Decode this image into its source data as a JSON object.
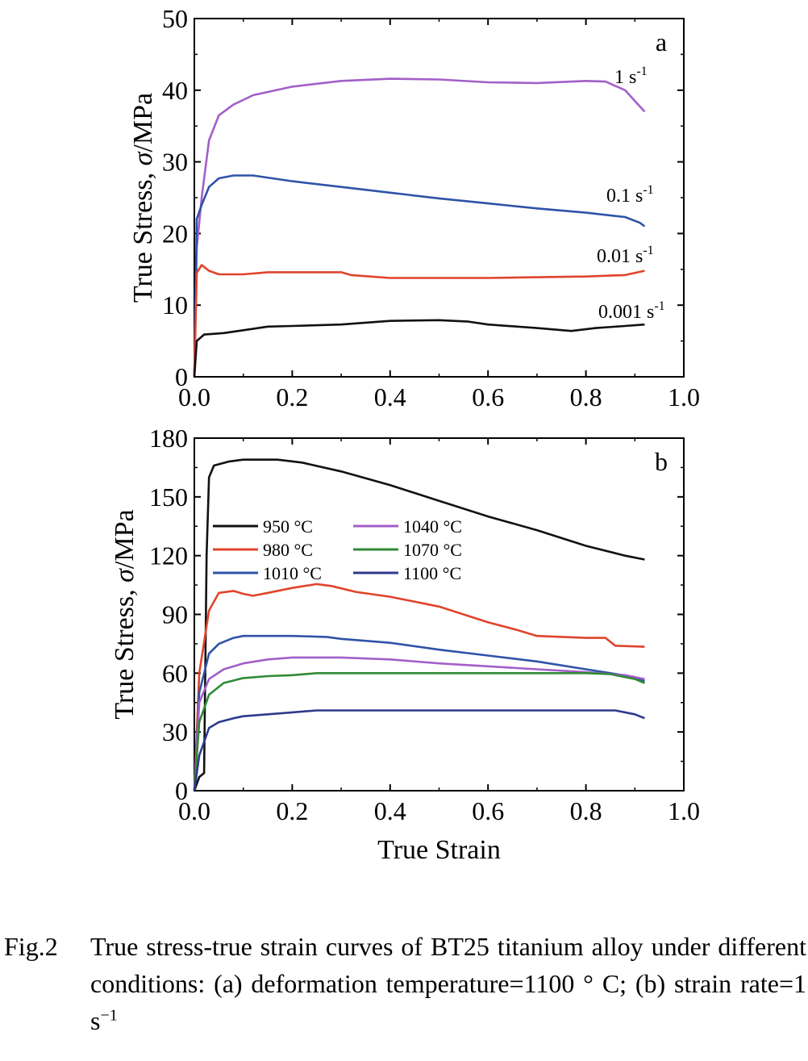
{
  "chart_data": [
    {
      "type": "line",
      "panel_label": "a",
      "ylabel_prefix": "True Stress, ",
      "ylabel_symbol": "σ",
      "ylabel_suffix": "/MPa",
      "xlim": [
        0.0,
        1.0
      ],
      "ylim": [
        0,
        50
      ],
      "xticks": [
        "0.0",
        "0.2",
        "0.4",
        "0.6",
        "0.8",
        "1.0"
      ],
      "yticks": [
        "0",
        "10",
        "20",
        "30",
        "40",
        "50"
      ],
      "series": [
        {
          "name": "1 s-1",
          "label_text": "1 s",
          "label_sup": "-1",
          "color": "#a35fc8",
          "points": [
            [
              0,
              0
            ],
            [
              0.005,
              18
            ],
            [
              0.015,
              25
            ],
            [
              0.03,
              33
            ],
            [
              0.05,
              36.5
            ],
            [
              0.08,
              38
            ],
            [
              0.12,
              39.3
            ],
            [
              0.2,
              40.5
            ],
            [
              0.3,
              41.3
            ],
            [
              0.4,
              41.6
            ],
            [
              0.5,
              41.5
            ],
            [
              0.6,
              41.1
            ],
            [
              0.7,
              41.0
            ],
            [
              0.8,
              41.3
            ],
            [
              0.84,
              41.2
            ],
            [
              0.88,
              40
            ],
            [
              0.9,
              38.5
            ],
            [
              0.92,
              37
            ]
          ]
        },
        {
          "name": "0.1 s-1",
          "label_text": "0.1 s",
          "label_sup": "-1",
          "color": "#2f53a8",
          "points": [
            [
              0,
              0
            ],
            [
              0.005,
              22
            ],
            [
              0.015,
              24
            ],
            [
              0.03,
              26.5
            ],
            [
              0.05,
              27.7
            ],
            [
              0.08,
              28.1
            ],
            [
              0.12,
              28.1
            ],
            [
              0.2,
              27.3
            ],
            [
              0.3,
              26.5
            ],
            [
              0.4,
              25.7
            ],
            [
              0.5,
              24.9
            ],
            [
              0.6,
              24.2
            ],
            [
              0.7,
              23.5
            ],
            [
              0.8,
              22.9
            ],
            [
              0.88,
              22.3
            ],
            [
              0.91,
              21.5
            ],
            [
              0.92,
              21
            ]
          ]
        },
        {
          "name": "0.01 s-1",
          "label_text": "0.01 s",
          "label_sup": "-1",
          "color": "#e0442b",
          "points": [
            [
              0,
              0
            ],
            [
              0.005,
              14.5
            ],
            [
              0.015,
              15.6
            ],
            [
              0.03,
              14.8
            ],
            [
              0.05,
              14.3
            ],
            [
              0.1,
              14.3
            ],
            [
              0.15,
              14.6
            ],
            [
              0.3,
              14.6
            ],
            [
              0.32,
              14.2
            ],
            [
              0.4,
              13.8
            ],
            [
              0.5,
              13.8
            ],
            [
              0.6,
              13.8
            ],
            [
              0.7,
              13.9
            ],
            [
              0.8,
              14.0
            ],
            [
              0.88,
              14.2
            ],
            [
              0.92,
              14.8
            ]
          ]
        },
        {
          "name": "0.001 s-1",
          "label_text": "0.001 s",
          "label_sup": "-1",
          "color": "#111111",
          "points": [
            [
              0,
              0
            ],
            [
              0.005,
              5
            ],
            [
              0.02,
              5.9
            ],
            [
              0.06,
              6.1
            ],
            [
              0.1,
              6.5
            ],
            [
              0.15,
              7.0
            ],
            [
              0.2,
              7.1
            ],
            [
              0.3,
              7.3
            ],
            [
              0.4,
              7.8
            ],
            [
              0.5,
              7.9
            ],
            [
              0.56,
              7.7
            ],
            [
              0.6,
              7.3
            ],
            [
              0.7,
              6.8
            ],
            [
              0.77,
              6.4
            ],
            [
              0.82,
              6.8
            ],
            [
              0.88,
              7.1
            ],
            [
              0.92,
              7.3
            ]
          ]
        }
      ]
    },
    {
      "type": "line",
      "panel_label": "b",
      "ylabel_prefix": "True Stress, ",
      "ylabel_symbol": "σ",
      "ylabel_suffix": "/MPa",
      "xlabel": "True Strain",
      "xlim": [
        0.0,
        1.0
      ],
      "ylim": [
        0,
        180
      ],
      "xticks": [
        "0.0",
        "0.2",
        "0.4",
        "0.6",
        "0.8",
        "1.0"
      ],
      "yticks": [
        "0",
        "30",
        "60",
        "90",
        "120",
        "150",
        "180"
      ],
      "legend_position": "upper-left",
      "series": [
        {
          "name": "950 °C",
          "color": "#111111",
          "points": [
            [
              0,
              0
            ],
            [
              0.01,
              7
            ],
            [
              0.02,
              9
            ],
            [
              0.025,
              120
            ],
            [
              0.03,
              160
            ],
            [
              0.04,
              166
            ],
            [
              0.07,
              168
            ],
            [
              0.1,
              169
            ],
            [
              0.17,
              169
            ],
            [
              0.22,
              167.5
            ],
            [
              0.3,
              163
            ],
            [
              0.4,
              156
            ],
            [
              0.5,
              148
            ],
            [
              0.6,
              140
            ],
            [
              0.7,
              133
            ],
            [
              0.8,
              125
            ],
            [
              0.88,
              120
            ],
            [
              0.92,
              118
            ]
          ]
        },
        {
          "name": "980 °C",
          "color": "#e0442b",
          "points": [
            [
              0,
              0
            ],
            [
              0.01,
              60
            ],
            [
              0.03,
              92
            ],
            [
              0.05,
              101
            ],
            [
              0.08,
              102
            ],
            [
              0.1,
              100.5
            ],
            [
              0.12,
              99.5
            ],
            [
              0.15,
              101
            ],
            [
              0.2,
              103.5
            ],
            [
              0.25,
              105.5
            ],
            [
              0.28,
              104.5
            ],
            [
              0.33,
              101.5
            ],
            [
              0.4,
              99
            ],
            [
              0.5,
              94
            ],
            [
              0.6,
              86
            ],
            [
              0.66,
              82
            ],
            [
              0.7,
              79
            ],
            [
              0.8,
              78
            ],
            [
              0.84,
              78
            ],
            [
              0.86,
              74
            ],
            [
              0.92,
              73.5
            ]
          ]
        },
        {
          "name": "1010 °C",
          "color": "#2f53a8",
          "points": [
            [
              0,
              0
            ],
            [
              0.01,
              50
            ],
            [
              0.03,
              70
            ],
            [
              0.05,
              75
            ],
            [
              0.08,
              78
            ],
            [
              0.1,
              79
            ],
            [
              0.2,
              79
            ],
            [
              0.27,
              78.5
            ],
            [
              0.3,
              77.5
            ],
            [
              0.4,
              75.5
            ],
            [
              0.5,
              72
            ],
            [
              0.6,
              69
            ],
            [
              0.7,
              66
            ],
            [
              0.8,
              62
            ],
            [
              0.85,
              60
            ],
            [
              0.9,
              58
            ],
            [
              0.92,
              56
            ]
          ]
        },
        {
          "name": "1040 °C",
          "color": "#a35fc8",
          "points": [
            [
              0,
              0
            ],
            [
              0.01,
              45
            ],
            [
              0.03,
              57
            ],
            [
              0.06,
              62
            ],
            [
              0.1,
              65
            ],
            [
              0.15,
              67
            ],
            [
              0.2,
              68
            ],
            [
              0.3,
              68
            ],
            [
              0.4,
              67
            ],
            [
              0.5,
              65
            ],
            [
              0.6,
              63.5
            ],
            [
              0.7,
              62
            ],
            [
              0.8,
              60.5
            ],
            [
              0.88,
              59
            ],
            [
              0.92,
              57
            ]
          ]
        },
        {
          "name": "1070 °C",
          "color": "#2f8a34",
          "points": [
            [
              0,
              0
            ],
            [
              0.01,
              35
            ],
            [
              0.03,
              49
            ],
            [
              0.06,
              55
            ],
            [
              0.1,
              57.5
            ],
            [
              0.15,
              58.5
            ],
            [
              0.2,
              59
            ],
            [
              0.25,
              60
            ],
            [
              0.3,
              60
            ],
            [
              0.4,
              60
            ],
            [
              0.5,
              60
            ],
            [
              0.6,
              60
            ],
            [
              0.7,
              60
            ],
            [
              0.8,
              60
            ],
            [
              0.85,
              59.5
            ],
            [
              0.9,
              57
            ],
            [
              0.92,
              55
            ]
          ]
        },
        {
          "name": "1100 °C",
          "color": "#2d3a8c",
          "points": [
            [
              0,
              0
            ],
            [
              0.01,
              18
            ],
            [
              0.03,
              32
            ],
            [
              0.05,
              35
            ],
            [
              0.08,
              37
            ],
            [
              0.1,
              38
            ],
            [
              0.15,
              39
            ],
            [
              0.2,
              40
            ],
            [
              0.25,
              41
            ],
            [
              0.3,
              41
            ],
            [
              0.4,
              41
            ],
            [
              0.5,
              41
            ],
            [
              0.6,
              41
            ],
            [
              0.7,
              41
            ],
            [
              0.8,
              41
            ],
            [
              0.86,
              41
            ],
            [
              0.9,
              39
            ],
            [
              0.92,
              37
            ]
          ]
        }
      ]
    }
  ],
  "caption": {
    "label": "Fig.2",
    "text_main": "True stress-true strain curves of BT25 titanium alloy under different conditions: (a) deformation temperature=1100 ° C; (b) strain rate=1 s",
    "text_sup": "−1"
  }
}
